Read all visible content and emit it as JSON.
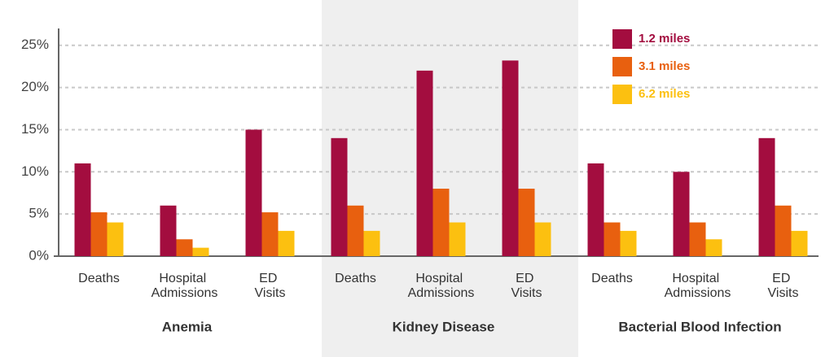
{
  "chart_data": {
    "type": "bar",
    "categories": [
      "Deaths",
      "Hospital Admissions",
      "ED Visits",
      "Deaths",
      "Hospital Admissions",
      "ED Visits",
      "Deaths",
      "Hospital Admissions",
      "ED Visits"
    ],
    "groups": [
      "Anemia",
      "Kidney Disease",
      "Bacterial Blood Infection"
    ],
    "series": [
      {
        "name": "1.2 miles",
        "color": "#a30d3f",
        "values": [
          11,
          6,
          15,
          14,
          22,
          23.2,
          11,
          10,
          14
        ]
      },
      {
        "name": "3.1 miles",
        "color": "#e8600f",
        "values": [
          5.2,
          2,
          5.2,
          6,
          8,
          8,
          4,
          4,
          6
        ]
      },
      {
        "name": "6.2 miles",
        "color": "#fcc010",
        "values": [
          4,
          1,
          3,
          3,
          4,
          4,
          3,
          2,
          3
        ]
      }
    ],
    "ylim": [
      0,
      27
    ],
    "yticks": [
      {
        "value": 0,
        "label": "0%"
      },
      {
        "value": 5,
        "label": "5%"
      },
      {
        "value": 10,
        "label": "10%"
      },
      {
        "value": 15,
        "label": "15%"
      },
      {
        "value": 20,
        "label": "20%"
      },
      {
        "value": 25,
        "label": "25%"
      }
    ],
    "grid": true,
    "legend": "top-right"
  }
}
